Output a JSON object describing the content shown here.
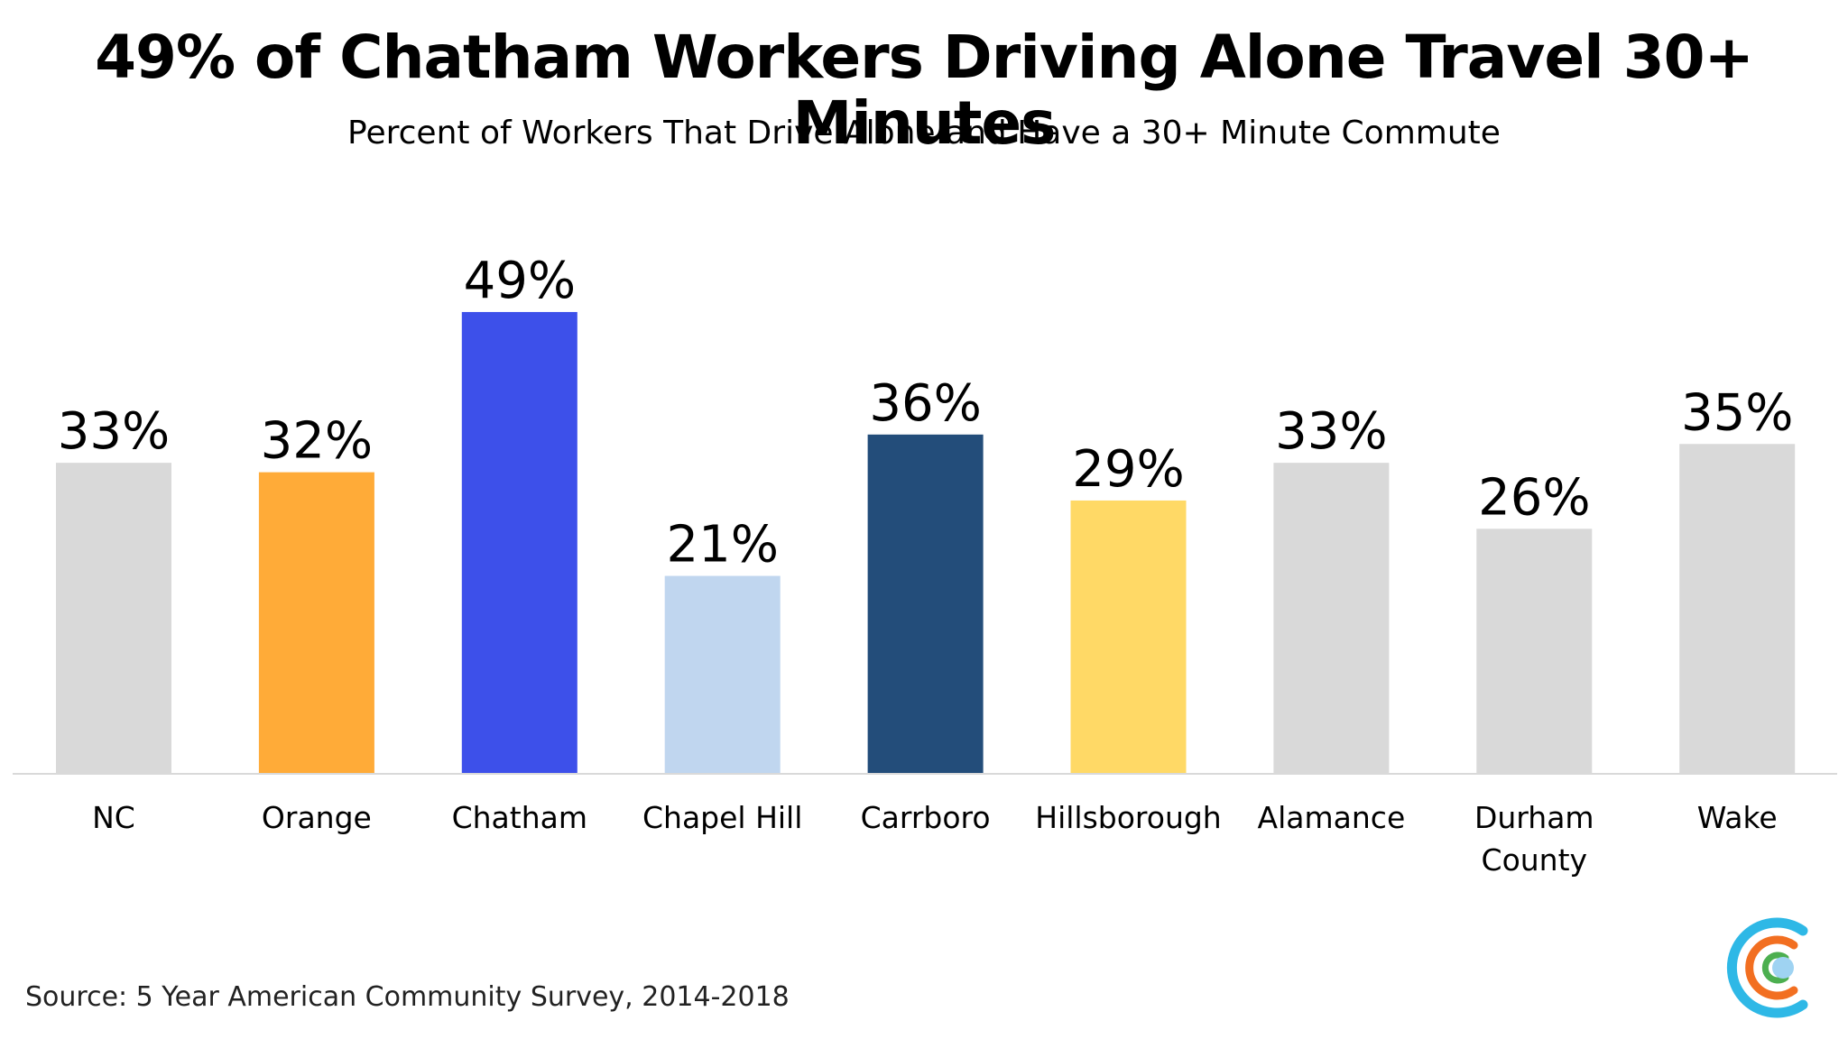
{
  "chart_data": {
    "type": "bar",
    "title": "49% of Chatham Workers Driving Alone Travel 30+ Minutes",
    "subtitle": "Percent of Workers That Drive Alone and Have a 30+ Minute Commute",
    "categories": [
      "NC",
      "Orange",
      "Chatham",
      "Chapel Hill",
      "Carrboro",
      "Hillsborough",
      "Alamance",
      "Durham County",
      "Wake"
    ],
    "category_lines": [
      [
        "NC"
      ],
      [
        "Orange"
      ],
      [
        "Chatham"
      ],
      [
        "Chapel Hill"
      ],
      [
        "Carrboro"
      ],
      [
        "Hillsborough"
      ],
      [
        "Alamance"
      ],
      [
        "Durham",
        "County"
      ],
      [
        "Wake"
      ]
    ],
    "values": [
      33,
      32,
      49,
      21,
      36,
      29,
      33,
      26,
      35
    ],
    "data_labels": [
      "33%",
      "32%",
      "49%",
      "21%",
      "36%",
      "29%",
      "33%",
      "26%",
      "35%"
    ],
    "bar_colors": [
      "#d9d9d9",
      "#ffab38",
      "#3d50ea",
      "#c0d6ef",
      "#234d7a",
      "#ffd966",
      "#d9d9d9",
      "#d9d9d9",
      "#d9d9d9"
    ],
    "xlabel": "",
    "ylabel": "",
    "ylim": [
      0,
      50
    ],
    "grid": false,
    "legend": "none"
  },
  "source": "Source: 5 Year American Community Survey, 2014-2018",
  "colors": {
    "axis_line": "#d9d9d9",
    "logo_outer": "#2eb8e6",
    "logo_middle": "#f26f21",
    "logo_inner": "#4caf50",
    "logo_dot": "#9fd3f2"
  }
}
